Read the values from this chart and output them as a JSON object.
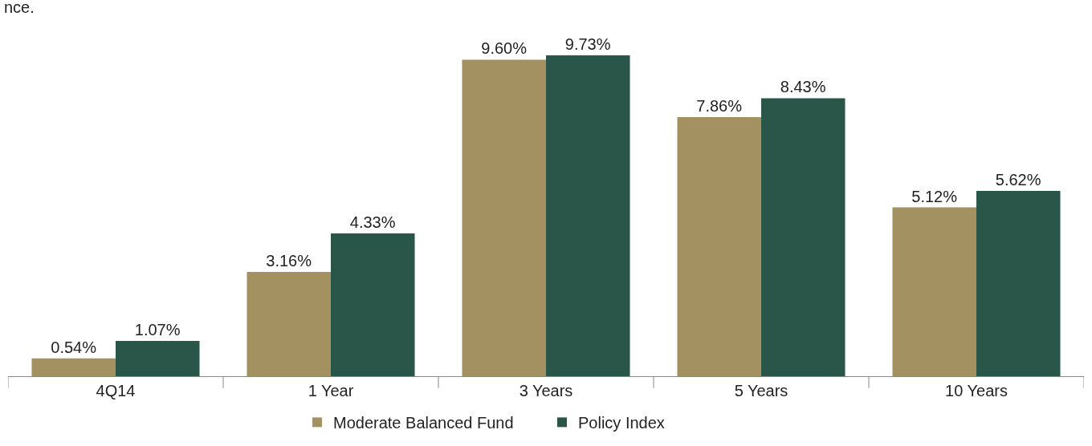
{
  "chart_data": {
    "type": "bar",
    "categories": [
      "4Q14",
      "1 Year",
      "3 Years",
      "5 Years",
      "10 Years"
    ],
    "series": [
      {
        "name": "Moderate Balanced Fund",
        "color": "#a39161",
        "values": [
          0.54,
          3.16,
          9.6,
          7.86,
          5.12
        ],
        "value_labels": [
          "0.54%",
          "3.16%",
          "9.60%",
          "7.86%",
          "5.12%"
        ]
      },
      {
        "name": "Policy Index",
        "color": "#2a5549",
        "values": [
          1.07,
          4.33,
          9.73,
          8.43,
          5.62
        ],
        "value_labels": [
          "1.07%",
          "4.33%",
          "9.73%",
          "8.43%",
          "5.62%"
        ]
      }
    ],
    "annotations": [
      "nce."
    ],
    "legend": "bottom"
  }
}
